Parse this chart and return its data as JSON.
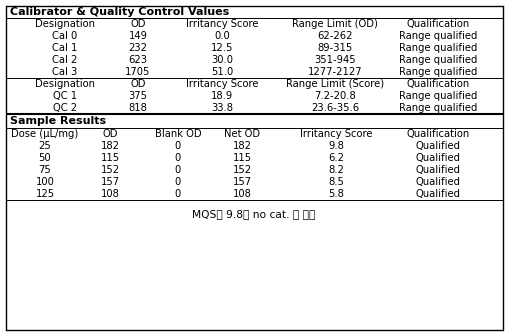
{
  "title1": "Calibrator & Quality Control Values",
  "cal_header": [
    "Designation",
    "OD",
    "Irritancy Score",
    "Range Limit (OD)",
    "Qualification"
  ],
  "cal_rows": [
    [
      "Cal 0",
      "149",
      "0.0",
      "62-262",
      "Range qualified"
    ],
    [
      "Cal 1",
      "232",
      "12.5",
      "89-315",
      "Range qualified"
    ],
    [
      "Cal 2",
      "623",
      "30.0",
      "351-945",
      "Range qualified"
    ],
    [
      "Cal 3",
      "1705",
      "51.0",
      "1277-2127",
      "Range qualified"
    ]
  ],
  "qc_header": [
    "Designation",
    "OD",
    "Irritancy Score",
    "Range Limit (Score)",
    "Qualification"
  ],
  "qc_rows": [
    [
      "QC 1",
      "375",
      "18.9",
      "7.2-20.8",
      "Range qualified"
    ],
    [
      "QC 2",
      "818",
      "33.8",
      "23.6-35.6",
      "Range qualified"
    ]
  ],
  "title2": "Sample Results",
  "sample_header": [
    "Dose (μL/mg)",
    "OD",
    "Blank OD",
    "Net OD",
    "Irritancy Score",
    "Qualification"
  ],
  "sample_rows": [
    [
      "25",
      "182",
      "0",
      "182",
      "9.8",
      "Qualified"
    ],
    [
      "50",
      "115",
      "0",
      "115",
      "6.2",
      "Qualified"
    ],
    [
      "75",
      "152",
      "0",
      "152",
      "8.2",
      "Qualified"
    ],
    [
      "100",
      "157",
      "0",
      "157",
      "8.5",
      "Qualified"
    ],
    [
      "125",
      "108",
      "0",
      "108",
      "5.8",
      "Qualified"
    ]
  ],
  "footer": "MQS가 9.8로 no cat. 로 판정",
  "bg_color": "#ffffff",
  "text_color": "#000000",
  "font_size": 7.2,
  "title_font_size": 8.0
}
